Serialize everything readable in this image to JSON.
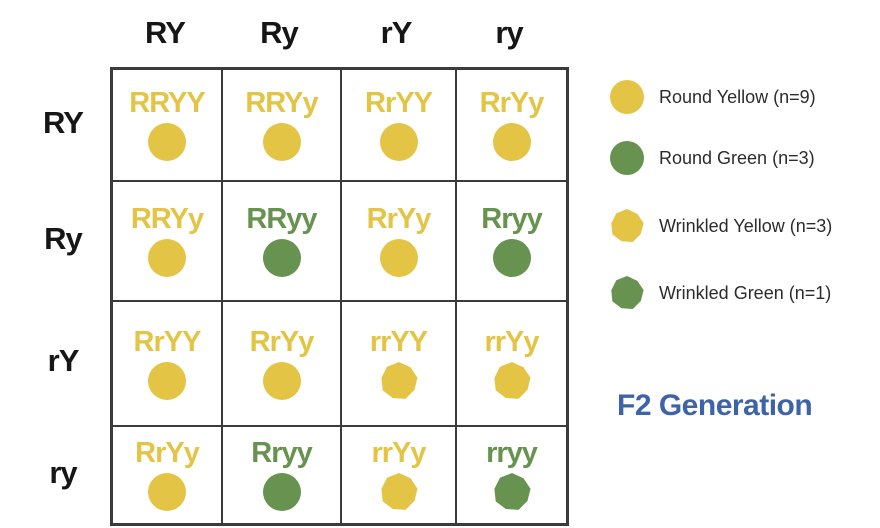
{
  "colors": {
    "yellow": "#E4C444",
    "green": "#67924F",
    "blue": "#3E63A6",
    "grid_border": "#3b3b3b",
    "header_text": "#161616",
    "legend_text": "#2c2c2c"
  },
  "punnett": {
    "col_headers": [
      "RY",
      "Ry",
      "rY",
      "ry"
    ],
    "row_headers": [
      "RY",
      "Ry",
      "rY",
      "ry"
    ],
    "cells": [
      {
        "genotype": "RRYY",
        "color": "yellow",
        "shape": "round"
      },
      {
        "genotype": "RRYy",
        "color": "yellow",
        "shape": "round"
      },
      {
        "genotype": "RrYY",
        "color": "yellow",
        "shape": "round"
      },
      {
        "genotype": "RrYy",
        "color": "yellow",
        "shape": "round"
      },
      {
        "genotype": "RRYy",
        "color": "yellow",
        "shape": "round"
      },
      {
        "genotype": "RRyy",
        "color": "green",
        "shape": "round"
      },
      {
        "genotype": "RrYy",
        "color": "yellow",
        "shape": "round"
      },
      {
        "genotype": "Rryy",
        "color": "green",
        "shape": "round"
      },
      {
        "genotype": "RrYY",
        "color": "yellow",
        "shape": "round"
      },
      {
        "genotype": "RrYy",
        "color": "yellow",
        "shape": "round"
      },
      {
        "genotype": "rrYY",
        "color": "yellow",
        "shape": "wrinkled"
      },
      {
        "genotype": "rrYy",
        "color": "yellow",
        "shape": "wrinkled"
      },
      {
        "genotype": "RrYy",
        "color": "yellow",
        "shape": "round"
      },
      {
        "genotype": "Rryy",
        "color": "green",
        "shape": "round"
      },
      {
        "genotype": "rrYy",
        "color": "yellow",
        "shape": "wrinkled"
      },
      {
        "genotype": "rryy",
        "color": "green",
        "shape": "wrinkled"
      }
    ]
  },
  "legend": {
    "items": [
      {
        "label": "Round Yellow (n=9)",
        "color": "yellow",
        "shape": "round"
      },
      {
        "label": "Round Green (n=3)",
        "color": "green",
        "shape": "round"
      },
      {
        "label": "Wrinkled Yellow (n=3)",
        "color": "yellow",
        "shape": "wrinkled"
      },
      {
        "label": "Wrinkled Green (n=1)",
        "color": "green",
        "shape": "wrinkled"
      }
    ]
  },
  "caption": {
    "text": "F2 Generation"
  }
}
